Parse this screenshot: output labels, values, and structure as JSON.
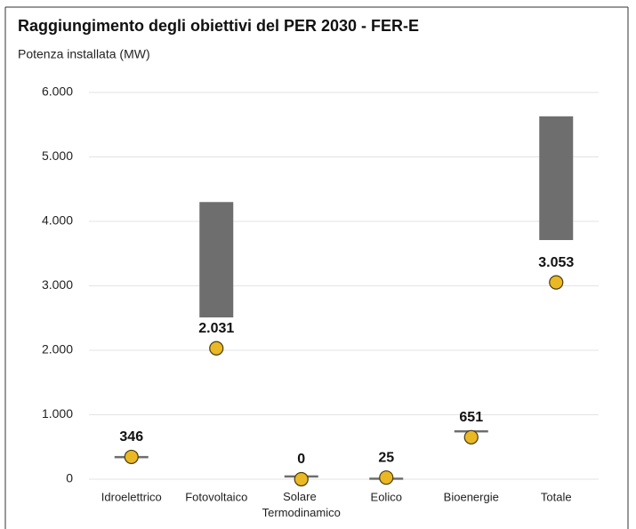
{
  "chart_data": {
    "type": "floating_bar",
    "title": "Raggiungimento degli obiettivi del PER 2030 - FER-E",
    "subtitle": "Potenza installata (MW)",
    "categories": [
      "Idroelettrico",
      "Fotovoltaico",
      "Solare Termodinamico",
      "Eolico",
      "Bioenergie",
      "Totale"
    ],
    "ranges": {
      "color": "#6e6e6e",
      "low": [
        330,
        2510,
        30,
        0,
        730,
        3710
      ],
      "high": [
        360,
        4300,
        60,
        25,
        760,
        5630
      ]
    },
    "points": {
      "color": "#e9b824",
      "values": [
        346,
        2031,
        0,
        25,
        651,
        3053
      ],
      "value_labels": [
        "346",
        "2.031",
        "0",
        "25",
        "651",
        "3.053"
      ]
    },
    "ylim": [
      0,
      6000
    ],
    "yticks": [
      0,
      {
        "value": 1000,
        "label": "1.000"
      },
      {
        "value": 2000,
        "label": "2.000"
      },
      {
        "value": 3000,
        "label": "3.000"
      },
      {
        "value": 4000,
        "label": "4.000"
      },
      {
        "value": 5000,
        "label": "5.000"
      },
      {
        "value": 6000,
        "label": "6.000"
      }
    ],
    "grid": true
  }
}
